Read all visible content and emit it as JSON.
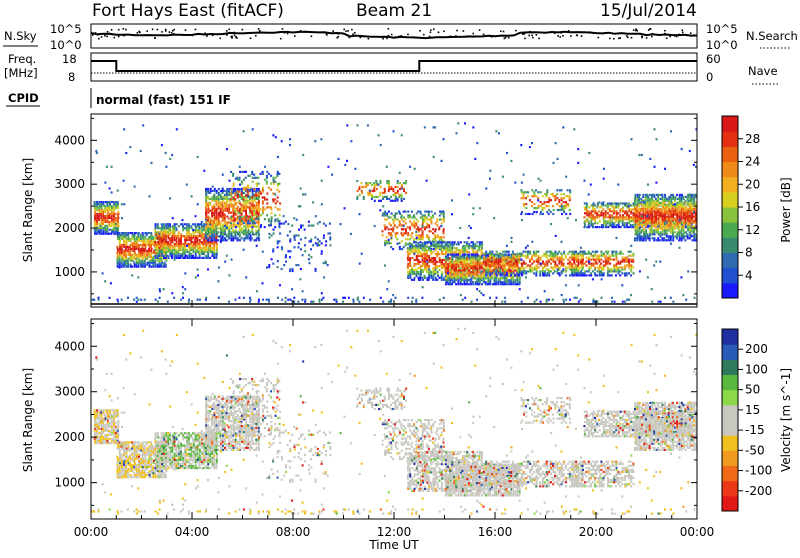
{
  "header": {
    "title": "Fort Hays East (fitACF)",
    "beam": "Beam 21",
    "date": "15/Jul/2014"
  },
  "strip_labels": {
    "nsky": "N.Sky",
    "nsearch": "N.Search",
    "freq": "Freq.",
    "freq_unit": "[MHz]",
    "nave": "Nave",
    "cpid": "CPID",
    "mode": "normal (fast) 151 IF"
  },
  "chart_data": [
    {
      "type": "line",
      "name": "noise-strip",
      "left_ticks": [
        "10^5",
        "10^0"
      ],
      "right_ticks": [
        "10^5",
        "10^0"
      ],
      "left_label": "N.Sky",
      "right_label": "N.Search"
    },
    {
      "type": "line",
      "name": "freq-strip",
      "left_ticks": [
        "18",
        "8"
      ],
      "right_ticks": [
        "60",
        "0"
      ],
      "left_label": "Freq.",
      "left_unit": "[MHz]",
      "right_label": "Nave",
      "freq_segments": [
        {
          "start_h": 0.0,
          "end_h": 1.0,
          "value": "high"
        },
        {
          "start_h": 1.0,
          "end_h": 13.0,
          "value": "low"
        },
        {
          "start_h": 13.0,
          "end_h": 24.0,
          "value": "high"
        }
      ]
    },
    {
      "type": "heatmap",
      "name": "power",
      "ylabel": "Slant Range [km]",
      "yticks": [
        1000,
        2000,
        3000,
        4000
      ],
      "ylim": [
        200,
        4600
      ],
      "xlim": [
        0,
        24
      ],
      "colorbar": {
        "label": "Power [dB]",
        "ticks": [
          4,
          8,
          12,
          16,
          20,
          24,
          28
        ],
        "range": [
          0,
          32
        ],
        "colors": [
          "#1a1aff",
          "#2050d0",
          "#2f6ab0",
          "#3a8a70",
          "#4aaa50",
          "#88c23c",
          "#d8d020",
          "#f2b020",
          "#f08a18",
          "#ea6010",
          "#e23010",
          "#d81818"
        ]
      }
    },
    {
      "type": "heatmap",
      "name": "velocity",
      "ylabel": "Slant Range [km]",
      "yticks": [
        1000,
        2000,
        3000,
        4000
      ],
      "ylim": [
        200,
        4600
      ],
      "xlim": [
        0,
        24
      ],
      "colorbar": {
        "label": "Velocity [m s^-1]",
        "ticks": [
          200,
          100,
          50,
          15,
          -15,
          -50,
          -100,
          -200
        ],
        "colors": [
          "#2030a0",
          "#2a5ab8",
          "#2f7a5a",
          "#5ab840",
          "#8cd848",
          "#c8c8c0",
          "#c8c8c0",
          "#f0c020",
          "#f09a20",
          "#f06a18",
          "#ea3818",
          "#e01818"
        ]
      }
    }
  ],
  "xaxis": {
    "ticks": [
      "00:00",
      "04:00",
      "08:00",
      "12:00",
      "16:00",
      "20:00",
      "00:00"
    ],
    "label": "Time UT"
  }
}
